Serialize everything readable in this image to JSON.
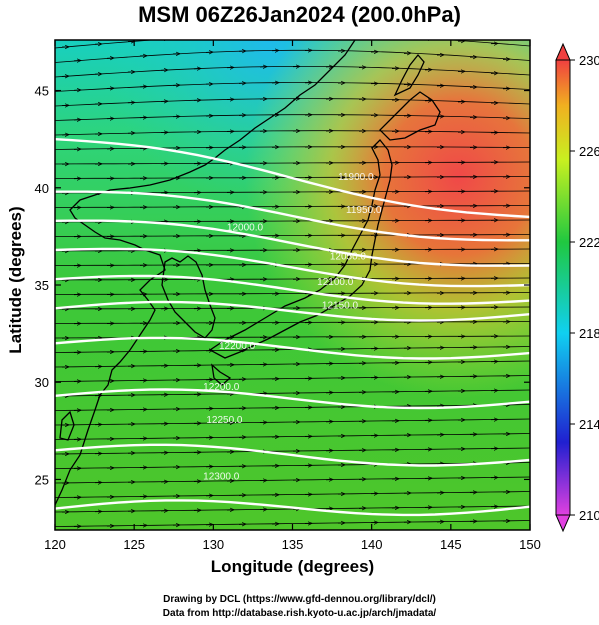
{
  "title": "MSM 06Z26Jan2024 (200.0hPa)",
  "xlabel": "Longitude (degrees)",
  "ylabel": "Latitude  (degrees)",
  "credits": [
    "Drawing by DCL (https://www.gfd-dennou.org/library/dcl/)",
    "Data from http://database.rish.kyoto-u.ac.jp/arch/jmadata/"
  ],
  "map": {
    "lon_range": [
      120,
      150
    ],
    "lat_range": [
      22.4,
      47.6
    ],
    "x_ticks": [
      120,
      125,
      130,
      135,
      140,
      145,
      150
    ],
    "y_ticks": [
      25,
      30,
      35,
      40,
      45
    ]
  },
  "colorbar": {
    "min": 210,
    "max": 230,
    "tick_labels": [
      "230",
      "226",
      "222",
      "218",
      "214",
      "210"
    ],
    "tick_values": [
      230,
      226,
      222,
      218,
      214,
      210
    ],
    "colors": [
      "#e040e0",
      "#2020d0",
      "#10d0f0",
      "#20c840",
      "#c8f020",
      "#f0b020",
      "#f04040"
    ]
  },
  "contours": [
    {
      "label": "11900.0",
      "lat_at_120": 42.5,
      "lat_at_150": 38.5
    },
    {
      "label": "11950.0",
      "lat_at_120": 39.8,
      "lat_at_150": 37.3
    },
    {
      "label": "12000.0",
      "lat_at_120": 38.3,
      "lat_at_150": 36.0
    },
    {
      "label": "12050.0",
      "lat_at_120": 36.8,
      "lat_at_150": 35.0
    },
    {
      "label": "12100.0",
      "lat_at_120": 35.3,
      "lat_at_150": 34.2
    },
    {
      "label": "12150.0",
      "lat_at_120": 33.8,
      "lat_at_150": 33.5
    },
    {
      "label": "12200.0",
      "lat_at_120": 32.0,
      "lat_at_150": 31.5
    },
    {
      "label": "12250.0",
      "lat_at_120": 29.3,
      "lat_at_150": 29.0
    },
    {
      "label": "12300.0",
      "lat_at_120": 26.5,
      "lat_at_150": 26.0
    },
    {
      "label": "",
      "lat_at_120": 23.5,
      "lat_at_150": 23.6
    }
  ],
  "contour_labels": [
    {
      "text": "11900.0",
      "lon": 139.0,
      "lat": 40.4
    },
    {
      "text": "11950.0",
      "lon": 139.5,
      "lat": 38.7
    },
    {
      "text": "12000.0",
      "lon": 132.0,
      "lat": 37.8
    },
    {
      "text": "12050.0",
      "lon": 138.5,
      "lat": 36.3
    },
    {
      "text": "12100.0",
      "lon": 137.7,
      "lat": 35.0
    },
    {
      "text": "12150.0",
      "lon": 138.0,
      "lat": 33.8
    },
    {
      "text": "12200.0",
      "lon": 131.5,
      "lat": 31.7
    },
    {
      "text": "12200.0",
      "lon": 130.5,
      "lat": 29.6
    },
    {
      "text": "12250.0",
      "lon": 130.7,
      "lat": 27.9
    },
    {
      "text": "12300.0",
      "lon": 130.5,
      "lat": 25.0
    }
  ]
}
